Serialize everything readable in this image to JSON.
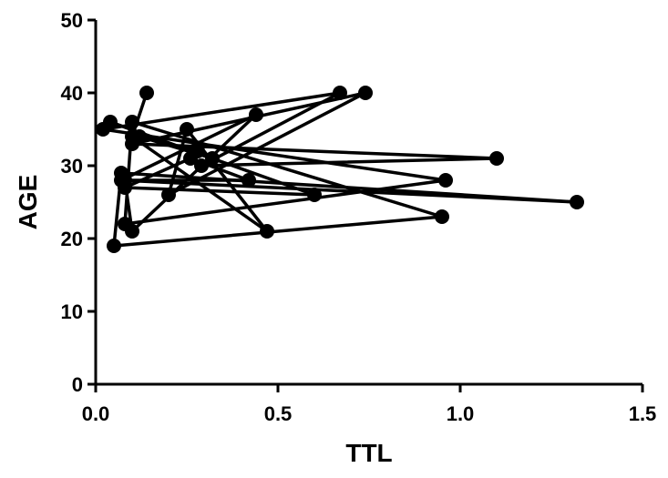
{
  "chart_data": {
    "type": "line",
    "xlabel": "TTL",
    "ylabel": "AGE",
    "xlim": [
      0,
      1.5
    ],
    "ylim": [
      0,
      50
    ],
    "x_ticks": [
      "0.0",
      "0.5",
      "1.0",
      "1.5"
    ],
    "y_ticks": [
      "0",
      "10",
      "20",
      "30",
      "40",
      "50"
    ],
    "grid": false,
    "legend": "none",
    "series_color": "#000000",
    "points": [
      {
        "x": 0.14,
        "y": 40
      },
      {
        "x": 0.1,
        "y": 34
      },
      {
        "x": 0.47,
        "y": 21
      },
      {
        "x": 0.25,
        "y": 35
      },
      {
        "x": 0.2,
        "y": 26
      },
      {
        "x": 0.74,
        "y": 40
      },
      {
        "x": 0.1,
        "y": 33
      },
      {
        "x": 1.1,
        "y": 31
      },
      {
        "x": 0.29,
        "y": 30
      },
      {
        "x": 0.67,
        "y": 40
      },
      {
        "x": 0.02,
        "y": 35
      },
      {
        "x": 0.96,
        "y": 28
      },
      {
        "x": 0.08,
        "y": 22
      },
      {
        "x": 0.1,
        "y": 36
      },
      {
        "x": 0.95,
        "y": 23
      },
      {
        "x": 0.05,
        "y": 19
      },
      {
        "x": 0.07,
        "y": 29
      },
      {
        "x": 1.32,
        "y": 25
      },
      {
        "x": 0.07,
        "y": 28
      },
      {
        "x": 0.44,
        "y": 37
      },
      {
        "x": 0.1,
        "y": 21
      },
      {
        "x": 0.08,
        "y": 28
      },
      {
        "x": 0.42,
        "y": 28
      },
      {
        "x": 0.26,
        "y": 31
      },
      {
        "x": 0.08,
        "y": 27
      },
      {
        "x": 0.6,
        "y": 26
      },
      {
        "x": 0.04,
        "y": 36
      },
      {
        "x": 0.32,
        "y": 31
      },
      {
        "x": 0.12,
        "y": 34
      },
      {
        "x": 0.28,
        "y": 32
      }
    ]
  }
}
